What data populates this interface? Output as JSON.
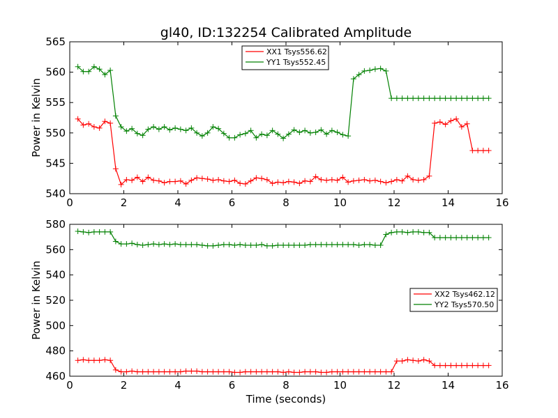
{
  "chart_data": [
    {
      "type": "line",
      "title": "gl40, ID:132254 Calibrated Amplitude",
      "xlabel": "",
      "ylabel": "Power in Kelvin",
      "xlim": [
        0,
        16
      ],
      "ylim": [
        540,
        565
      ],
      "xticks": [
        "0",
        "2",
        "4",
        "6",
        "8",
        "10",
        "12",
        "14",
        "16"
      ],
      "yticks": [
        "540",
        "545",
        "550",
        "555",
        "560",
        "565"
      ],
      "legend_position": "top-center",
      "x": [
        0.3,
        0.5,
        0.7,
        0.9,
        1.1,
        1.3,
        1.5,
        1.7,
        1.9,
        2.1,
        2.3,
        2.5,
        2.7,
        2.9,
        3.1,
        3.3,
        3.5,
        3.7,
        3.9,
        4.1,
        4.3,
        4.5,
        4.7,
        4.9,
        5.1,
        5.3,
        5.5,
        5.7,
        5.9,
        6.1,
        6.3,
        6.5,
        6.7,
        6.9,
        7.1,
        7.3,
        7.5,
        7.7,
        7.9,
        8.1,
        8.3,
        8.5,
        8.7,
        8.9,
        9.1,
        9.3,
        9.5,
        9.7,
        9.9,
        10.1,
        10.3,
        10.5,
        10.7,
        10.9,
        11.1,
        11.3,
        11.5,
        11.7,
        11.9,
        12.1,
        12.3,
        12.5,
        12.7,
        12.9,
        13.1,
        13.3,
        13.5,
        13.7,
        13.9,
        14.1,
        14.3,
        14.5,
        14.7,
        14.9,
        15.1,
        15.3,
        15.5
      ],
      "series": [
        {
          "name": "XX1 Tsys556.62",
          "color": "#ff0000",
          "values": [
            552.3,
            551.3,
            551.5,
            551.0,
            550.8,
            551.9,
            551.6,
            544.1,
            541.5,
            542.3,
            542.2,
            542.7,
            542.0,
            542.7,
            542.2,
            542.1,
            541.8,
            542.0,
            542.0,
            542.1,
            541.6,
            542.2,
            542.6,
            542.5,
            542.4,
            542.2,
            542.3,
            542.1,
            542.0,
            542.2,
            541.7,
            541.6,
            542.1,
            542.6,
            542.5,
            542.3,
            541.7,
            541.9,
            541.8,
            542.0,
            541.9,
            541.7,
            542.1,
            542.0,
            542.8,
            542.3,
            542.2,
            542.3,
            542.2,
            542.7,
            541.9,
            542.1,
            542.2,
            542.3,
            542.1,
            542.2,
            542.0,
            541.8,
            542.0,
            542.3,
            542.1,
            542.9,
            542.3,
            542.2,
            542.3,
            542.9,
            551.6,
            551.8,
            551.4,
            552.0,
            552.3,
            551.0,
            551.5,
            547.1,
            547.1,
            547.1,
            547.1
          ]
        },
        {
          "name": "YY1 Tsys552.45",
          "color": "#008000",
          "values": [
            560.9,
            560.1,
            560.1,
            560.9,
            560.5,
            559.6,
            560.3,
            552.8,
            551.0,
            550.3,
            550.7,
            549.9,
            549.6,
            550.6,
            551.0,
            550.6,
            551.0,
            550.5,
            550.8,
            550.6,
            550.4,
            550.8,
            550.0,
            549.5,
            550.0,
            551.0,
            550.7,
            549.9,
            549.2,
            549.2,
            549.7,
            549.9,
            550.4,
            549.2,
            549.8,
            549.6,
            550.4,
            549.8,
            549.1,
            549.8,
            550.5,
            550.1,
            550.4,
            550.0,
            550.1,
            550.5,
            549.8,
            550.4,
            550.1,
            549.7,
            549.5,
            558.9,
            559.6,
            560.2,
            560.3,
            560.5,
            560.6,
            560.2,
            555.7,
            555.7,
            555.7,
            555.7,
            555.7,
            555.7,
            555.7,
            555.7,
            555.7,
            555.7,
            555.7,
            555.7,
            555.7,
            555.7,
            555.7,
            555.7,
            555.7,
            555.7,
            555.7
          ]
        }
      ]
    },
    {
      "type": "line",
      "title": "",
      "xlabel": "Time (seconds)",
      "ylabel": "Power in Kelvin",
      "xlim": [
        0,
        16
      ],
      "ylim": [
        460,
        580
      ],
      "xticks": [
        "0",
        "2",
        "4",
        "6",
        "8",
        "10",
        "12",
        "14",
        "16"
      ],
      "yticks": [
        "460",
        "480",
        "500",
        "520",
        "540",
        "560",
        "580"
      ],
      "legend_position": "center-right",
      "series": [
        {
          "name": "XX2 Tsys462.12",
          "color": "#ff0000",
          "values": [
            472.5,
            473.0,
            472.5,
            472.5,
            472.5,
            473.0,
            472.5,
            465.0,
            463.5,
            463.5,
            464.0,
            463.5,
            463.5,
            463.5,
            463.5,
            463.5,
            463.5,
            463.5,
            463.5,
            463.5,
            464.0,
            464.0,
            464.0,
            463.5,
            463.5,
            463.5,
            463.5,
            463.5,
            463.5,
            463.0,
            463.0,
            463.5,
            463.5,
            463.5,
            463.5,
            463.5,
            463.5,
            463.5,
            463.0,
            463.5,
            463.0,
            463.0,
            463.5,
            463.5,
            463.5,
            463.0,
            463.0,
            463.5,
            463.5,
            463.5,
            463.5,
            463.5,
            463.5,
            463.5,
            463.5,
            463.5,
            463.5,
            463.5,
            463.5,
            472.0,
            472.0,
            473.0,
            472.5,
            472.0,
            473.0,
            472.0,
            468.5,
            468.5,
            468.5,
            468.5,
            468.5,
            468.5,
            468.5,
            468.5,
            468.5,
            468.5,
            468.5
          ]
        },
        {
          "name": "YY2 Tsys570.50",
          "color": "#008000",
          "values": [
            574.5,
            574.0,
            573.5,
            574.0,
            574.0,
            574.0,
            574.0,
            566.5,
            564.5,
            564.5,
            565.0,
            564.0,
            563.5,
            564.0,
            564.5,
            564.0,
            564.5,
            564.0,
            564.5,
            564.0,
            564.0,
            564.0,
            564.0,
            563.5,
            563.0,
            563.0,
            563.5,
            564.0,
            564.0,
            563.5,
            564.0,
            563.5,
            563.5,
            563.5,
            564.0,
            563.0,
            563.0,
            563.5,
            563.5,
            563.5,
            563.5,
            563.5,
            563.5,
            564.0,
            564.0,
            564.0,
            564.0,
            564.0,
            564.0,
            564.0,
            564.0,
            564.0,
            563.5,
            564.0,
            564.0,
            563.5,
            563.5,
            572.0,
            573.5,
            574.0,
            574.0,
            573.5,
            574.0,
            574.0,
            573.5,
            573.5,
            569.5,
            569.5,
            569.5,
            569.5,
            569.5,
            569.5,
            569.5,
            569.5,
            569.5,
            569.5,
            569.5
          ]
        }
      ]
    }
  ]
}
